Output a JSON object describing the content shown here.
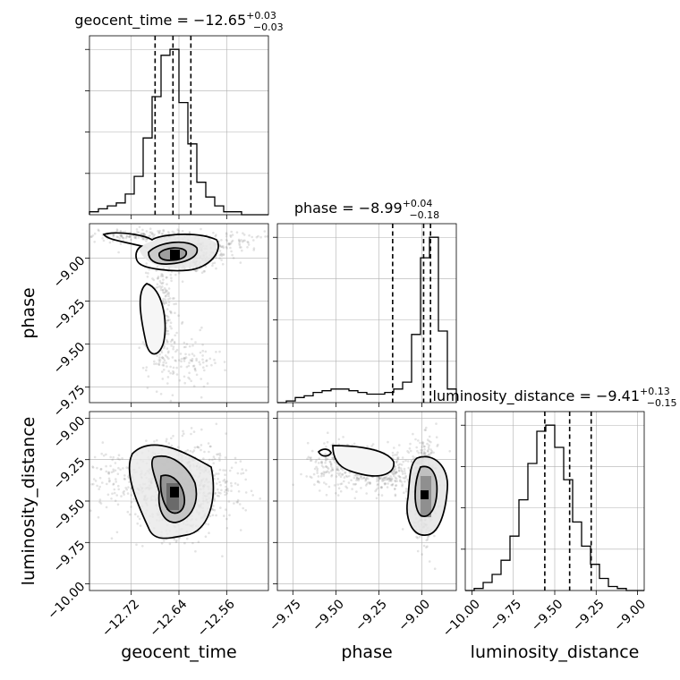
{
  "chart_data": {
    "type": "corner",
    "parameters": [
      "geocent_time",
      "phase",
      "luminosity_distance"
    ],
    "titles": [
      {
        "param": "geocent_time",
        "prefix": "geocent_time = ",
        "median": "−12.65",
        "plus": "+0.03",
        "minus": "−0.03"
      },
      {
        "param": "phase",
        "prefix": "phase = ",
        "median": "−8.99",
        "plus": "+0.04",
        "minus": "−0.18"
      },
      {
        "param": "luminosity_distance",
        "prefix": "luminosity_distance = ",
        "median": "−9.41",
        "plus": "+0.13",
        "minus": "−0.15"
      }
    ],
    "ranges": {
      "geocent_time": [
        -12.79,
        -12.49
      ],
      "phase": [
        -9.84,
        -8.8
      ],
      "luminosity_distance": [
        -10.04,
        -8.96
      ]
    },
    "ticks": {
      "geocent_time": {
        "values": [
          -12.72,
          -12.64,
          -12.56
        ],
        "labels": [
          "−12.72",
          "−12.64",
          "−12.56"
        ]
      },
      "phase": {
        "values": [
          -9.75,
          -9.5,
          -9.25,
          -9.0
        ],
        "labels": [
          "−9.75",
          "−9.50",
          "−9.25",
          "−9.00"
        ]
      },
      "luminosity_distance": {
        "values": [
          -10.0,
          -9.75,
          -9.5,
          -9.25,
          -9.0
        ],
        "labels": [
          "−10.00",
          "−9.75",
          "−9.50",
          "−9.25",
          "−9.00"
        ]
      }
    },
    "quantiles": {
      "geocent_time": [
        -12.68,
        -12.65,
        -12.62
      ],
      "phase": [
        -9.17,
        -8.99,
        -8.95
      ],
      "luminosity_distance": [
        -9.56,
        -9.41,
        -9.28
      ]
    },
    "histograms": {
      "geocent_time": {
        "bins": 20,
        "counts": [
          1,
          2,
          3,
          4,
          7,
          13,
          26,
          40,
          54,
          56,
          38,
          24,
          11,
          6,
          3,
          1,
          1,
          0,
          0,
          0
        ]
      },
      "phase": {
        "bins": 20,
        "counts": [
          0,
          1,
          3,
          4,
          6,
          7,
          8,
          8,
          7,
          6,
          5,
          5,
          6,
          8,
          12,
          40,
          85,
          97,
          42,
          8
        ]
      },
      "luminosity_distance": {
        "bins": 20,
        "counts": [
          0,
          1,
          4,
          8,
          15,
          27,
          45,
          63,
          79,
          82,
          71,
          55,
          34,
          22,
          13,
          6,
          2,
          1,
          0,
          0
        ]
      }
    },
    "grid": true,
    "labels": {
      "geocent_time": "geocent_time",
      "phase": "phase",
      "luminosity_distance": "luminosity_distance"
    }
  }
}
